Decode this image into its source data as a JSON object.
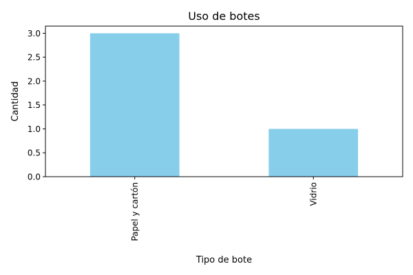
{
  "chart_data": {
    "type": "bar",
    "title": "Uso de botes",
    "xlabel": "Tipo de bote",
    "ylabel": "Cantidad",
    "categories": [
      "Papel y cartón",
      "Vidrio"
    ],
    "values": [
      3,
      1
    ],
    "ylim": [
      0,
      3.15
    ],
    "yticks": [
      "0.0",
      "0.5",
      "1.0",
      "1.5",
      "2.0",
      "2.5",
      "3.0"
    ],
    "bar_color": "#87ceeb",
    "grid": false,
    "legend": "none"
  }
}
